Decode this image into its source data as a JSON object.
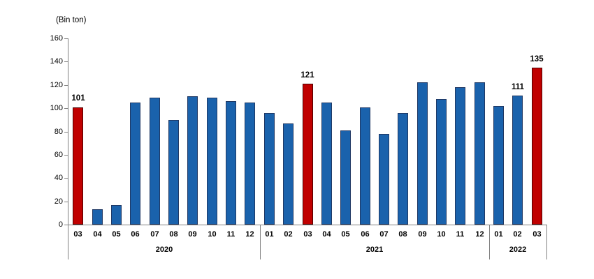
{
  "chart_data": {
    "type": "bar",
    "title": "",
    "ylabel": "(Bin ton)",
    "xlabel": "",
    "ylim": [
      0,
      160
    ],
    "ytick_step": 20,
    "ytick_labels": [
      "0",
      "20",
      "40",
      "60",
      "80",
      "100",
      "120",
      "140",
      "160"
    ],
    "grid": "off",
    "legend": "none",
    "colors": {
      "bar_default": "#1A62AC",
      "bar_default_border": "#1F3864",
      "bar_highlight": "#C00000",
      "bar_highlight_border": "#4D0000",
      "axis": "#808080",
      "text": "#000000"
    },
    "groups": [
      {
        "year": "2020",
        "bars": [
          {
            "month": "03",
            "value": 101,
            "highlight": true,
            "label": "101"
          },
          {
            "month": "04",
            "value": 13
          },
          {
            "month": "05",
            "value": 17
          },
          {
            "month": "06",
            "value": 105
          },
          {
            "month": "07",
            "value": 109
          },
          {
            "month": "08",
            "value": 90
          },
          {
            "month": "09",
            "value": 110
          },
          {
            "month": "10",
            "value": 109
          },
          {
            "month": "11",
            "value": 106
          },
          {
            "month": "12",
            "value": 105
          }
        ]
      },
      {
        "year": "2021",
        "bars": [
          {
            "month": "01",
            "value": 96
          },
          {
            "month": "02",
            "value": 87
          },
          {
            "month": "03",
            "value": 121,
            "highlight": true,
            "label": "121"
          },
          {
            "month": "04",
            "value": 105
          },
          {
            "month": "05",
            "value": 81
          },
          {
            "month": "06",
            "value": 101
          },
          {
            "month": "07",
            "value": 78
          },
          {
            "month": "08",
            "value": 96
          },
          {
            "month": "09",
            "value": 122
          },
          {
            "month": "10",
            "value": 108
          },
          {
            "month": "11",
            "value": 118
          },
          {
            "month": "12",
            "value": 122
          }
        ]
      },
      {
        "year": "2022",
        "bars": [
          {
            "month": "01",
            "value": 102
          },
          {
            "month": "02",
            "value": 111,
            "label": "111"
          },
          {
            "month": "03",
            "value": 135,
            "highlight": true,
            "label": "135"
          }
        ]
      }
    ]
  }
}
